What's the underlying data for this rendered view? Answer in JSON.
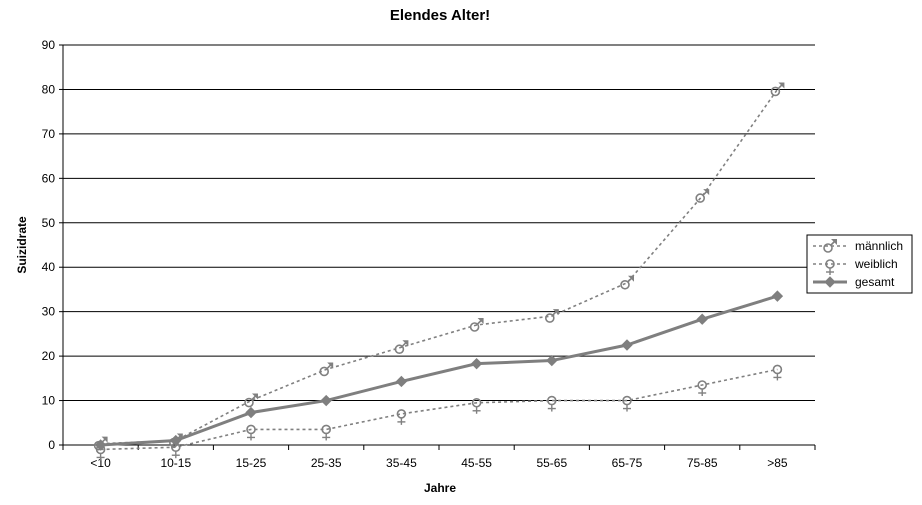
{
  "chart_data": {
    "type": "line",
    "title": "Elendes Alter!",
    "xlabel": "Jahre",
    "ylabel": "Suizidrate",
    "categories": [
      "<10",
      "10-15",
      "15-25",
      "25-35",
      "35-45",
      "45-55",
      "55-65",
      "65-75",
      "75-85",
      ">85"
    ],
    "ylim": [
      0,
      90
    ],
    "yticks": [
      0,
      10,
      20,
      30,
      40,
      50,
      60,
      70,
      80,
      90
    ],
    "grid": true,
    "legend_position": "right",
    "series": [
      {
        "name": "männlich",
        "symbol": "♂",
        "color": "#808080",
        "style": "dashed",
        "values": [
          0.3,
          1.0,
          10.0,
          17.0,
          22.0,
          27.0,
          29.0,
          36.5,
          56.0,
          80.0
        ]
      },
      {
        "name": "weiblich",
        "symbol": "♀",
        "color": "#808080",
        "style": "dashed",
        "values": [
          -1.0,
          -0.5,
          3.5,
          3.5,
          7.0,
          9.5,
          10.0,
          10.0,
          13.5,
          17.0
        ]
      },
      {
        "name": "gesamt",
        "symbol": "diamond",
        "color": "#7f7f7f",
        "style": "solid",
        "values": [
          0.0,
          1.0,
          7.3,
          10.0,
          14.3,
          18.3,
          19.0,
          22.5,
          28.3,
          33.5
        ]
      }
    ]
  }
}
